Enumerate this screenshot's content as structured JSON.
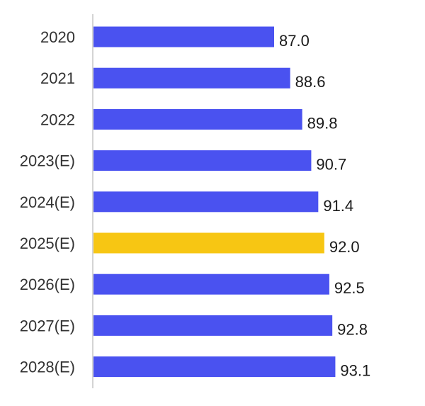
{
  "chart_data": {
    "type": "bar",
    "orientation": "horizontal",
    "categories": [
      "2020",
      "2021",
      "2022",
      "2023(E)",
      "2024(E)",
      "2025(E)",
      "2026(E)",
      "2027(E)",
      "2028(E)"
    ],
    "values": [
      87.0,
      88.6,
      89.8,
      90.7,
      91.4,
      92.0,
      92.5,
      92.8,
      93.1
    ],
    "value_labels": [
      "87.0",
      "88.6",
      "89.8",
      "90.7",
      "91.4",
      "92.0",
      "92.5",
      "92.8",
      "93.1"
    ],
    "highlight_category": "2025(E)",
    "xlim": [
      69.0,
      95.0
    ],
    "grid": false,
    "title": "",
    "xlabel": "",
    "ylabel": ""
  },
  "colors": {
    "bar": "#4a52f0",
    "highlight": "#f7c613"
  }
}
